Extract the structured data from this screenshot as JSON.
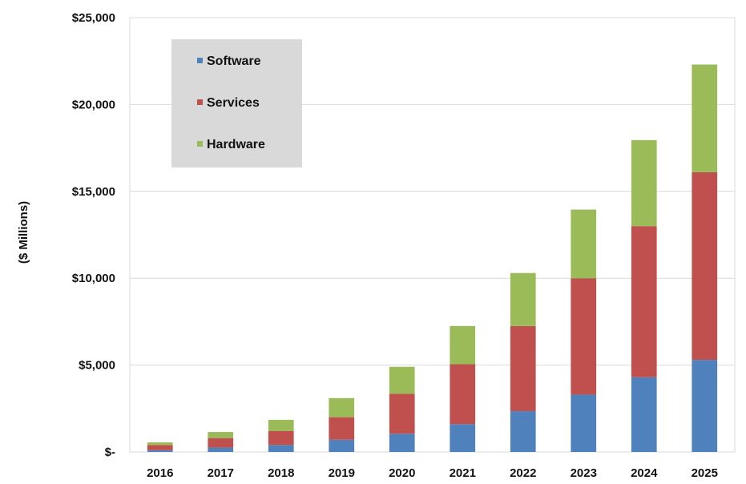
{
  "chart_data": {
    "type": "bar",
    "stacked": true,
    "title": "",
    "xlabel": "",
    "ylabel": "($ Millions)",
    "categories": [
      "2016",
      "2017",
      "2018",
      "2019",
      "2020",
      "2021",
      "2022",
      "2023",
      "2024",
      "2025"
    ],
    "series": [
      {
        "name": "Software",
        "color": "#4f81bd",
        "values": [
          100,
          250,
          400,
          700,
          1050,
          1600,
          2350,
          3300,
          4300,
          5300
        ]
      },
      {
        "name": "Services",
        "color": "#c0504d",
        "values": [
          300,
          550,
          800,
          1300,
          2300,
          3450,
          4900,
          6700,
          8700,
          10800
        ]
      },
      {
        "name": "Hardware",
        "color": "#9bbb59",
        "values": [
          150,
          350,
          650,
          1100,
          1550,
          2200,
          3050,
          3950,
          4950,
          6200
        ]
      }
    ],
    "ylim": [
      0,
      25000
    ],
    "yticks": [
      0,
      5000,
      10000,
      15000,
      20000,
      25000
    ],
    "ytick_labels": [
      "$-",
      "$5,000",
      "$10,000",
      "$15,000",
      "$20,000",
      "$25,000"
    ],
    "grid": true,
    "legend_position": "top-left"
  }
}
